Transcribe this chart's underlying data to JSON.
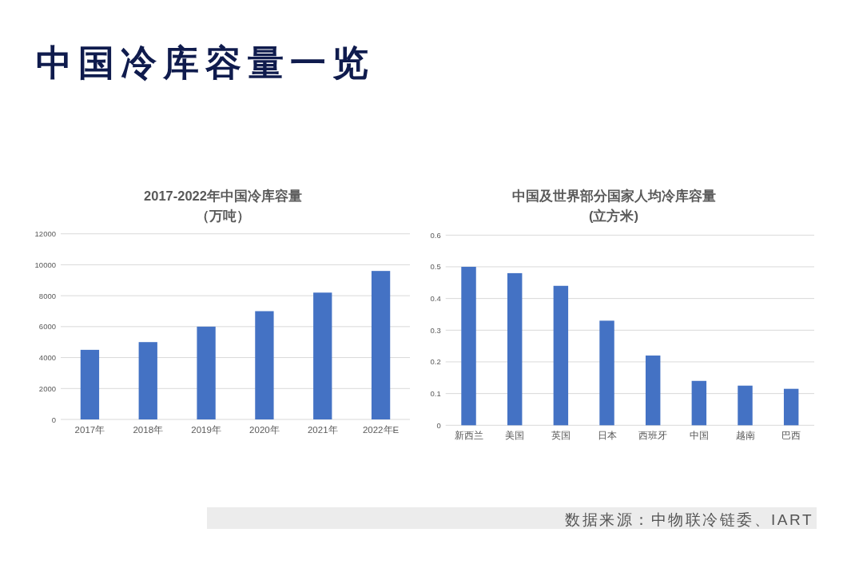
{
  "chart_data": [
    {
      "type": "other",
      "title": "中国冷库容量一览"
    },
    {
      "type": "bar",
      "title": "2017-2022年中国冷库容量",
      "subtitle": "（万吨）",
      "categories": [
        "2017年",
        "2018年",
        "2019年",
        "2020年",
        "2021年",
        "2022年E"
      ],
      "values": [
        4500,
        5000,
        6000,
        7000,
        8200,
        9600
      ],
      "color": "#4472c4",
      "ylim": [
        0,
        12000
      ],
      "yticks": [
        0,
        2000,
        4000,
        6000,
        8000,
        10000,
        12000
      ],
      "grid": "y"
    },
    {
      "type": "bar",
      "title": "中国及世界部分国家人均冷库容量",
      "subtitle": "(立方米)",
      "categories": [
        "新西兰",
        "美国",
        "英国",
        "日本",
        "西班牙",
        "中国",
        "越南",
        "巴西"
      ],
      "values": [
        0.5,
        0.48,
        0.44,
        0.33,
        0.22,
        0.14,
        0.125,
        0.115
      ],
      "color": "#4472c4",
      "ylim": [
        0,
        0.6
      ],
      "yticks": [
        0,
        0.1,
        0.2,
        0.3,
        0.4,
        0.5,
        0.6
      ],
      "grid": "y"
    },
    {
      "type": "other",
      "annotations": [
        "数据来源：中物联冷链委、IART"
      ]
    }
  ]
}
